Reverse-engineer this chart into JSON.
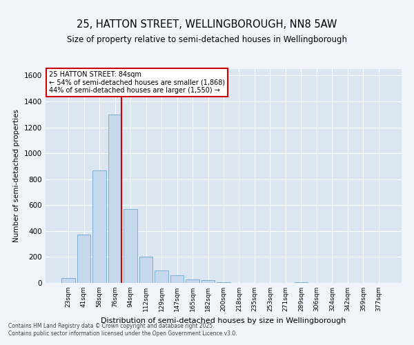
{
  "title": "25, HATTON STREET, WELLINGBOROUGH, NN8 5AW",
  "subtitle": "Size of property relative to semi-detached houses in Wellingborough",
  "xlabel": "Distribution of semi-detached houses by size in Wellingborough",
  "ylabel": "Number of semi-detached properties",
  "categories": [
    "23sqm",
    "41sqm",
    "58sqm",
    "76sqm",
    "94sqm",
    "112sqm",
    "129sqm",
    "147sqm",
    "165sqm",
    "182sqm",
    "200sqm",
    "218sqm",
    "235sqm",
    "253sqm",
    "271sqm",
    "289sqm",
    "306sqm",
    "324sqm",
    "342sqm",
    "359sqm",
    "377sqm"
  ],
  "values": [
    35,
    370,
    870,
    1300,
    570,
    200,
    95,
    60,
    25,
    20,
    5,
    0,
    0,
    0,
    0,
    5,
    0,
    0,
    0,
    0,
    0
  ],
  "bar_color": "#c5d8ee",
  "bar_edge_color": "#7aafd4",
  "vline_color": "#cc0000",
  "annotation_title": "25 HATTON STREET: 84sqm",
  "annotation_line1": "← 54% of semi-detached houses are smaller (1,868)",
  "annotation_line2": "44% of semi-detached houses are larger (1,550) →",
  "annotation_box_color": "#ffffff",
  "annotation_box_edge": "#cc0000",
  "ylim": [
    0,
    1650
  ],
  "yticks": [
    0,
    200,
    400,
    600,
    800,
    1000,
    1200,
    1400,
    1600
  ],
  "footer1": "Contains HM Land Registry data © Crown copyright and database right 2025.",
  "footer2": "Contains public sector information licensed under the Open Government Licence v3.0.",
  "fig_bg_color": "#f0f4fb",
  "plot_bg_color": "#dce6f1"
}
